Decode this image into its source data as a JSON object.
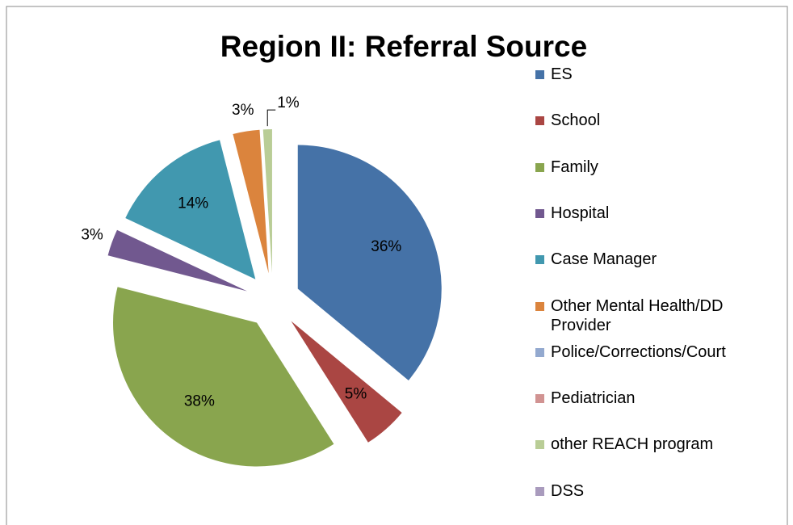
{
  "chart_data": {
    "type": "pie",
    "title": "Region II: Referral Source",
    "categories": [
      "ES",
      "School",
      "Family",
      "Hospital",
      "Case Manager",
      "Other Mental Health/DD Provider",
      "Police/Corrections/Court",
      "Pediatrician",
      "other REACH program",
      "DSS"
    ],
    "values": [
      36,
      5,
      38,
      3,
      14,
      3,
      0,
      0,
      1,
      0
    ],
    "value_labels": [
      "36%",
      "5%",
      "38%",
      "3%",
      "14%",
      "3%",
      null,
      null,
      "1%",
      null
    ],
    "colors": [
      "#4572a7",
      "#aa4643",
      "#89a54e",
      "#71588f",
      "#4198af",
      "#db843d",
      "#93a9cf",
      "#d19392",
      "#b9cd96",
      "#a99bbd"
    ],
    "legend": "right"
  }
}
